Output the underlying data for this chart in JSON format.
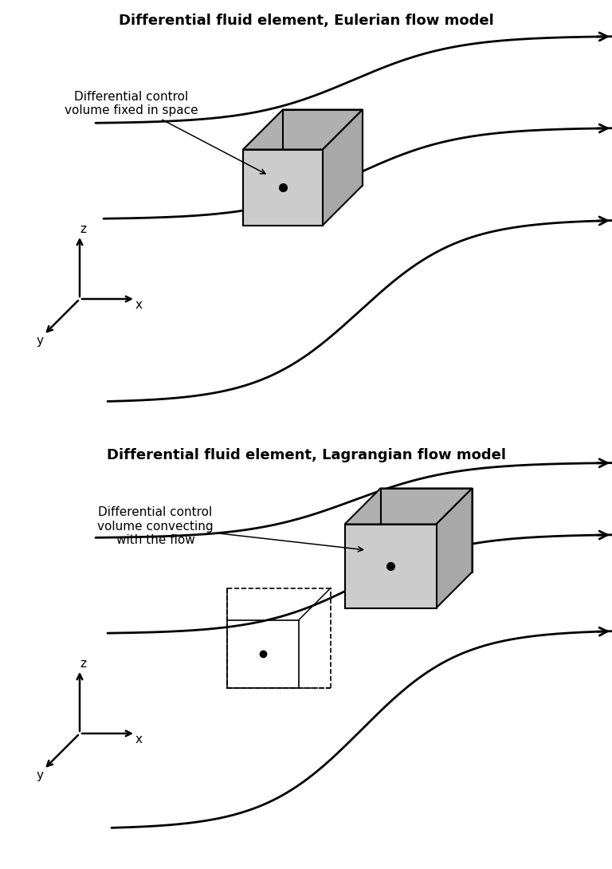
{
  "title1": "Differential fluid element, Eulerian flow model",
  "title2": "Differential fluid element, Lagrangian flow model",
  "label1": "Differential control\nvolume fixed in space",
  "label2": "Differential control\nvolume convecting\nwith the flow",
  "bg_color": "#ffffff",
  "line_color": "#000000",
  "face_color_front": "#cccccc",
  "face_color_top": "#b8b8b8",
  "face_color_side": "#aaaaaa",
  "title_fontsize": 13,
  "label_fontsize": 11
}
